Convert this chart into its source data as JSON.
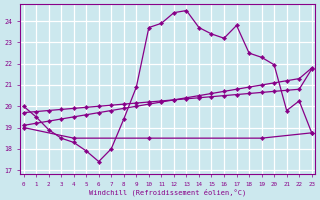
{
  "xlabel": "Windchill (Refroidissement éolien,°C)",
  "background_color": "#cce8ee",
  "grid_color": "#ffffff",
  "line_color": "#880088",
  "x_ticks": [
    0,
    1,
    2,
    3,
    4,
    5,
    6,
    7,
    8,
    9,
    10,
    11,
    12,
    13,
    14,
    15,
    16,
    17,
    18,
    19,
    20,
    21,
    22,
    23
  ],
  "y_ticks": [
    17,
    18,
    19,
    20,
    21,
    22,
    23,
    24
  ],
  "ylim": [
    16.8,
    24.8
  ],
  "xlim": [
    -0.3,
    23.3
  ],
  "series1_x": [
    0,
    1,
    2,
    3,
    4,
    5,
    6,
    7,
    8,
    9,
    10,
    11,
    12,
    13,
    14,
    15,
    16,
    17,
    18,
    19,
    20,
    21,
    22,
    23
  ],
  "series1_y": [
    20.0,
    19.5,
    18.9,
    18.5,
    18.3,
    17.9,
    17.4,
    18.0,
    19.4,
    20.9,
    23.7,
    23.9,
    24.4,
    24.5,
    23.7,
    23.4,
    23.2,
    23.8,
    22.5,
    22.3,
    21.95,
    19.8,
    20.25,
    18.75
  ],
  "series2_x": [
    0,
    1,
    2,
    3,
    4,
    5,
    6,
    7,
    8,
    9,
    10,
    11,
    12,
    13,
    14,
    15,
    16,
    17,
    18,
    19,
    20,
    21,
    22,
    23
  ],
  "series2_y": [
    19.1,
    19.2,
    19.3,
    19.4,
    19.5,
    19.6,
    19.7,
    19.8,
    19.9,
    20.0,
    20.1,
    20.2,
    20.3,
    20.4,
    20.5,
    20.6,
    20.7,
    20.8,
    20.9,
    21.0,
    21.1,
    21.2,
    21.3,
    21.8
  ],
  "series3_x": [
    0,
    4,
    10,
    19,
    23
  ],
  "series3_y": [
    19.0,
    18.5,
    18.5,
    18.5,
    18.75
  ],
  "series4_x": [
    0,
    1,
    2,
    3,
    4,
    5,
    6,
    7,
    8,
    9,
    10,
    11,
    12,
    13,
    14,
    15,
    16,
    17,
    18,
    19,
    20,
    21,
    22,
    23
  ],
  "series4_y": [
    19.7,
    19.75,
    19.8,
    19.85,
    19.9,
    19.95,
    20.0,
    20.05,
    20.1,
    20.15,
    20.2,
    20.25,
    20.3,
    20.35,
    20.4,
    20.45,
    20.5,
    20.55,
    20.6,
    20.65,
    20.7,
    20.75,
    20.8,
    21.75
  ]
}
